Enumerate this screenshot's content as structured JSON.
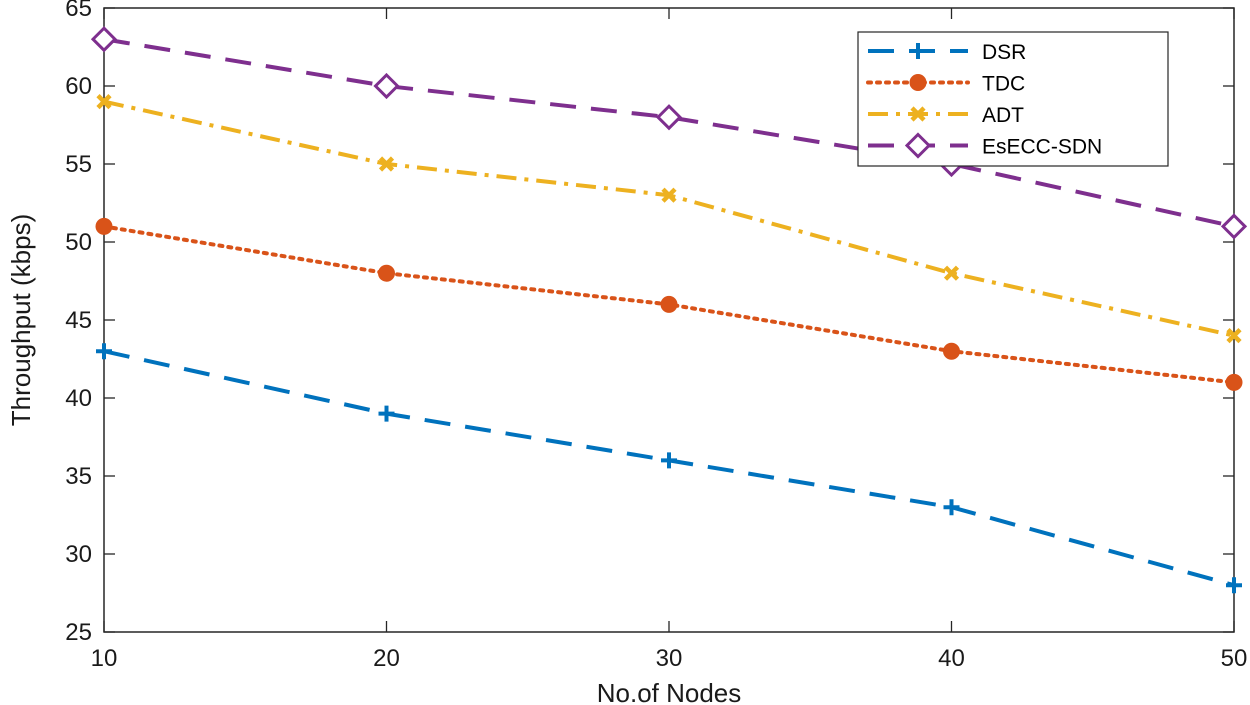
{
  "chart_data": {
    "type": "line",
    "title": "",
    "xlabel": "No.of Nodes",
    "ylabel": "Throughput (kbps)",
    "x": [
      10,
      20,
      30,
      40,
      50
    ],
    "xlim": [
      10,
      50
    ],
    "ylim": [
      25,
      65
    ],
    "xticks": [
      10,
      20,
      30,
      40,
      50
    ],
    "yticks": [
      25,
      30,
      35,
      40,
      45,
      50,
      55,
      60,
      65
    ],
    "grid": false,
    "legend_position": "top-right",
    "series": [
      {
        "name": "DSR",
        "values": [
          43,
          39,
          36,
          33,
          28
        ],
        "color": "#0072BD",
        "line_style": "dashed",
        "marker": "plus"
      },
      {
        "name": "TDC",
        "values": [
          51,
          48,
          46,
          43,
          41
        ],
        "color": "#D95319",
        "line_style": "dotted",
        "marker": "circle"
      },
      {
        "name": "ADT",
        "values": [
          59,
          55,
          53,
          48,
          44
        ],
        "color": "#EDB120",
        "line_style": "dash-dot",
        "marker": "x"
      },
      {
        "name": "EsECC-SDN",
        "values": [
          63,
          60,
          58,
          55,
          51
        ],
        "color": "#7E2F8E",
        "line_style": "dashed",
        "marker": "diamond"
      }
    ]
  }
}
